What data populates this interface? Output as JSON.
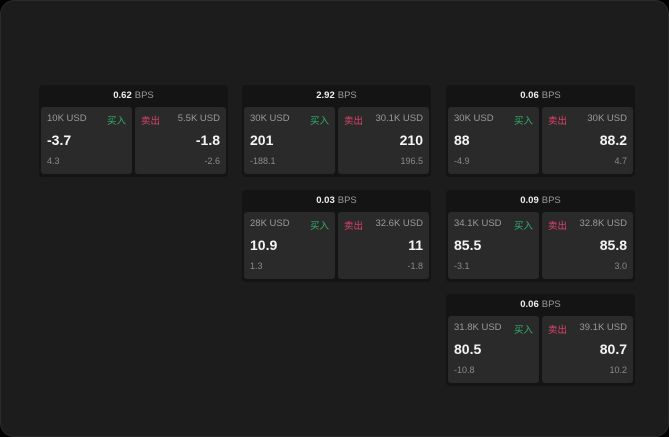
{
  "colors": {
    "buy": "#2fb36a",
    "sell": "#e0426a"
  },
  "labels": {
    "buy": "买入",
    "sell": "卖出",
    "unit": "BPS"
  },
  "cards": [
    {
      "spread": "0.62",
      "bid": {
        "size": "10K USD",
        "price": "-3.7",
        "change": "4.3"
      },
      "ask": {
        "size": "5.5K USD",
        "price": "-1.8",
        "change": "-2.6"
      }
    },
    {
      "spread": "2.92",
      "bid": {
        "size": "30K USD",
        "price": "201",
        "change": "-188.1"
      },
      "ask": {
        "size": "30.1K USD",
        "price": "210",
        "change": "196.5"
      }
    },
    {
      "spread": "0.06",
      "bid": {
        "size": "30K USD",
        "price": "88",
        "change": "-4.9"
      },
      "ask": {
        "size": "30K USD",
        "price": "88.2",
        "change": "4.7"
      }
    },
    {
      "spread": "0.03",
      "bid": {
        "size": "28K USD",
        "price": "10.9",
        "change": "1.3"
      },
      "ask": {
        "size": "32.6K USD",
        "price": "11",
        "change": "-1.8"
      }
    },
    {
      "spread": "0.09",
      "bid": {
        "size": "34.1K USD",
        "price": "85.5",
        "change": "-3.1"
      },
      "ask": {
        "size": "32.8K USD",
        "price": "85.8",
        "change": "3.0"
      }
    },
    {
      "spread": "0.06",
      "bid": {
        "size": "31.8K USD",
        "price": "80.5",
        "change": "-10.8"
      },
      "ask": {
        "size": "39.1K USD",
        "price": "80.7",
        "change": "10.2"
      }
    }
  ]
}
